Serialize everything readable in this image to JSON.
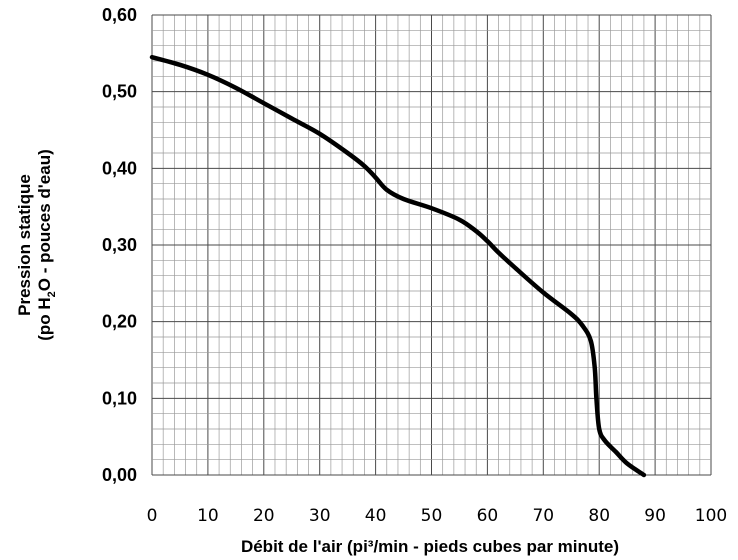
{
  "chart_data": {
    "type": "line",
    "title": "",
    "xlabel": "Débit de l'air (pi³/min - pieds cubes par minute)",
    "ylabel_line1": "Pression statique",
    "ylabel_line2": {
      "before_sub": "(po H",
      "sub": "2",
      "after_sub": "O - pouces d'eau)"
    },
    "xlim": [
      0,
      100
    ],
    "ylim": [
      0,
      0.6
    ],
    "x_ticks": [
      0,
      10,
      20,
      30,
      40,
      50,
      60,
      70,
      80,
      90,
      100
    ],
    "x_tick_labels": [
      "0",
      "10",
      "20",
      "30",
      "40",
      "50",
      "60",
      "70",
      "80",
      "90",
      "100"
    ],
    "y_ticks": [
      0,
      0.1,
      0.2,
      0.3,
      0.4,
      0.5,
      0.6
    ],
    "y_tick_labels": [
      "0,00",
      "0,10",
      "0,20",
      "0,30",
      "0,40",
      "0,50",
      "0,60"
    ],
    "grid": true,
    "minor_grid": {
      "x_step": 2,
      "y_step": 0.02
    },
    "line_color": "#000000",
    "series": [
      {
        "x": [
          0,
          5,
          10,
          15,
          20,
          25,
          30,
          35,
          38,
          40,
          42,
          45,
          50,
          55,
          58,
          60,
          62,
          65,
          70,
          75,
          77,
          78.5,
          79.2,
          79.5,
          80,
          81,
          83,
          85,
          88
        ],
        "y": [
          0.545,
          0.535,
          0.522,
          0.505,
          0.485,
          0.465,
          0.445,
          0.42,
          0.403,
          0.388,
          0.372,
          0.36,
          0.348,
          0.333,
          0.318,
          0.305,
          0.29,
          0.27,
          0.238,
          0.21,
          0.195,
          0.175,
          0.14,
          0.1,
          0.06,
          0.045,
          0.03,
          0.015,
          0.0
        ]
      }
    ]
  }
}
